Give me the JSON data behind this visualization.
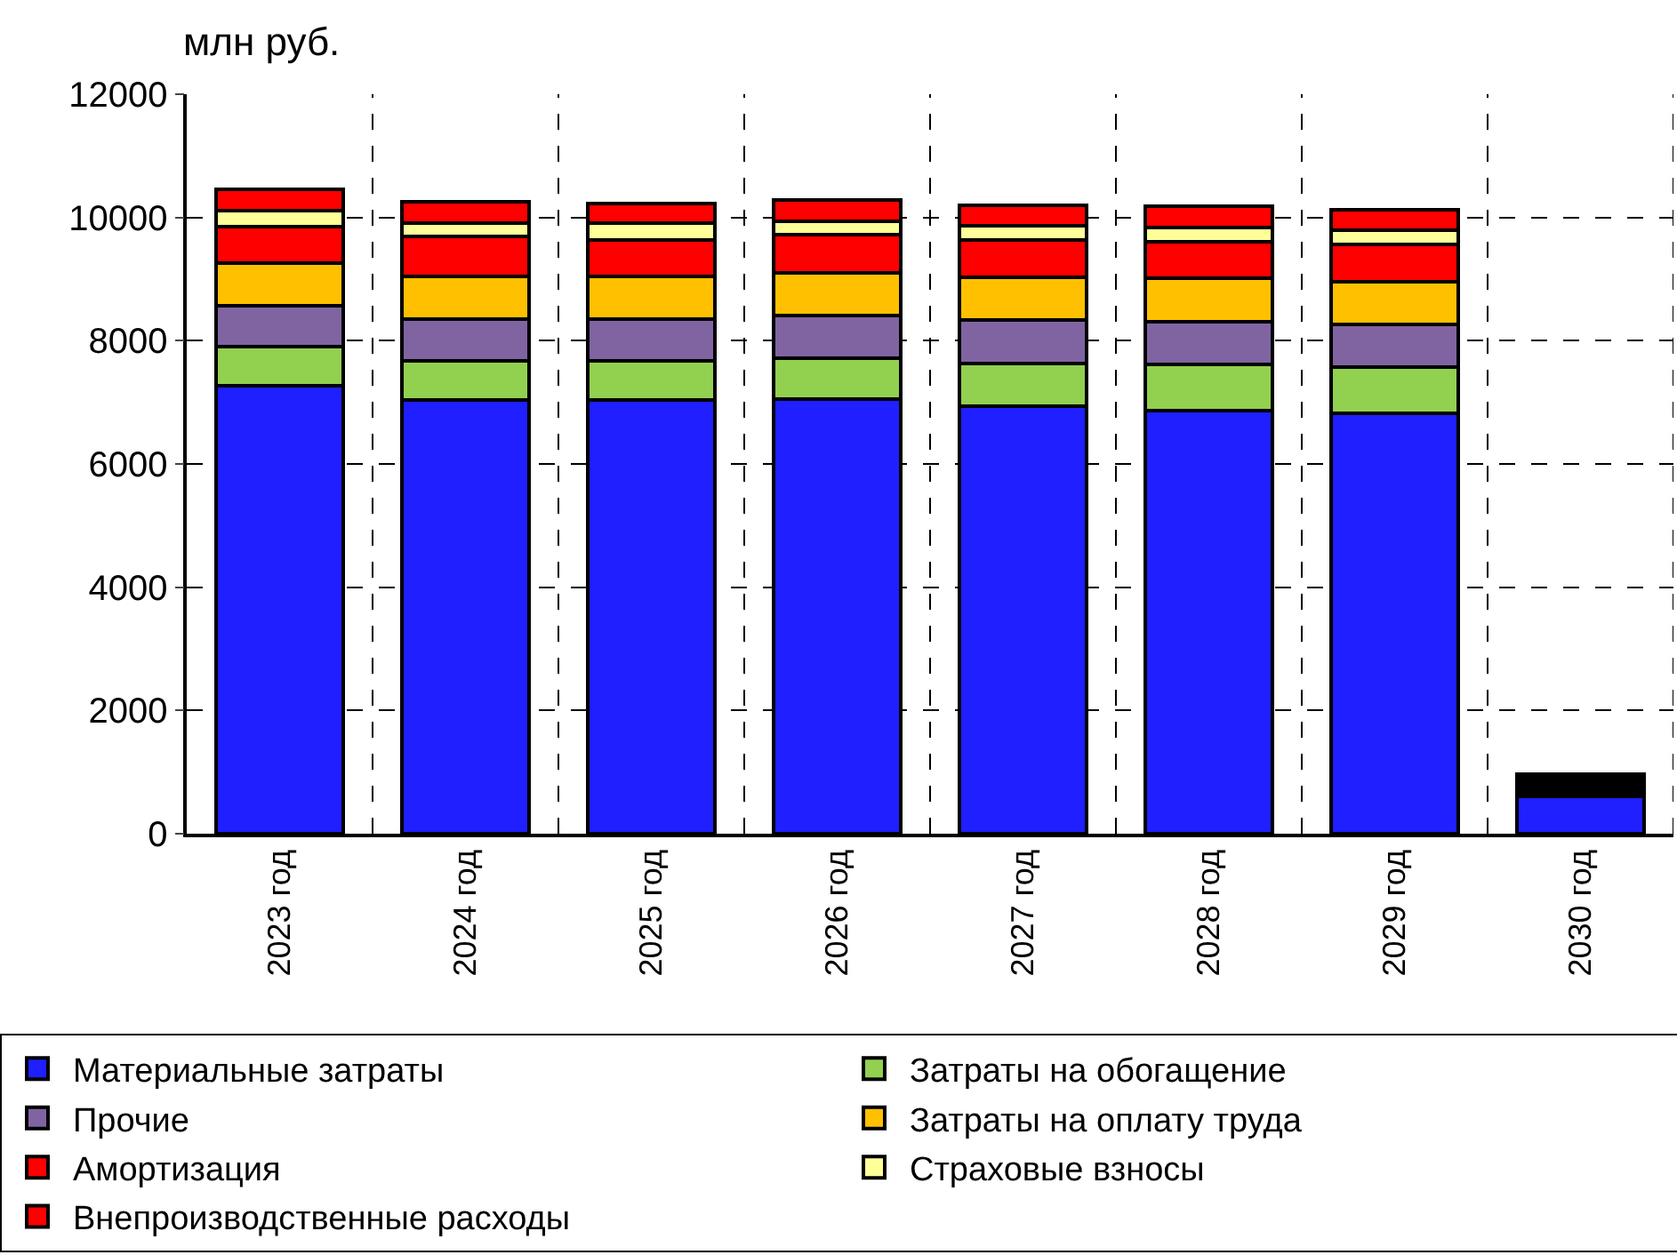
{
  "chart_data": {
    "type": "bar",
    "stacked": true,
    "ylabel": "млн руб.",
    "categories": [
      "2023 год",
      "2024 год",
      "2025 год",
      "2026 год",
      "2027 год",
      "2028 год",
      "2029 год",
      "2030 год"
    ],
    "ylim": [
      0,
      12000
    ],
    "yticks": [
      0,
      2000,
      4000,
      6000,
      8000,
      10000,
      12000
    ],
    "grid": true,
    "legend": "bottom",
    "series": [
      {
        "name": "Материальные затраты",
        "color": "#1f1fff",
        "values": [
          7270,
          7040,
          7040,
          7060,
          6940,
          6870,
          6820,
          600
        ]
      },
      {
        "name": "Затраты на обогащение",
        "color": "#92d050",
        "values": [
          630,
          640,
          640,
          660,
          690,
          740,
          750,
          null
        ]
      },
      {
        "name": "Прочие",
        "color": "#8064a2",
        "values": [
          670,
          670,
          670,
          690,
          710,
          700,
          690,
          null
        ]
      },
      {
        "name": "Затраты на оплату труда",
        "color": "#ffc000",
        "values": [
          690,
          700,
          700,
          690,
          690,
          700,
          690,
          null
        ]
      },
      {
        "name": "Амортизация",
        "color": "#ff0000",
        "values": [
          590,
          640,
          590,
          620,
          610,
          590,
          610,
          null
        ]
      },
      {
        "name": "Страховые взносы",
        "color": "#ffff99",
        "values": [
          260,
          220,
          270,
          220,
          230,
          230,
          230,
          null
        ]
      },
      {
        "name": "Внепроизводственные расходы",
        "colors": [
          "#ff0000",
          "#ff0000",
          "#ff0000",
          "#ff0000",
          "#ff0000",
          "#ff0000",
          "#ff0000",
          "#000000"
        ],
        "values": [
          350,
          340,
          320,
          340,
          330,
          360,
          330,
          370
        ]
      }
    ]
  }
}
